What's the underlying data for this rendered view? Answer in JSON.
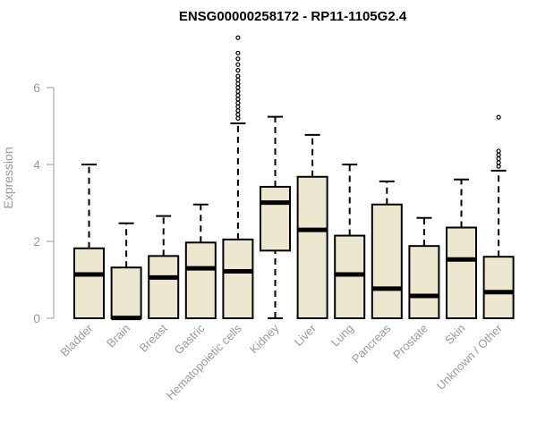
{
  "chart_data": {
    "type": "boxplot",
    "title": "ENSG00000258172 - RP11-1105G2.4",
    "ylabel": "Expression",
    "xlabel": "",
    "ylim": [
      0,
      7.4
    ],
    "yticks": [
      0,
      2,
      4,
      6
    ],
    "grid": false,
    "colors": {
      "box_fill": "#ede7cf",
      "stroke": "#000000",
      "axis_text": "#999999"
    },
    "categories": [
      "Bladder",
      "Brain",
      "Breast",
      "Gastric",
      "Hematopoietic cells",
      "Kidney",
      "Liver",
      "Lung",
      "Pancreas",
      "Prostate",
      "Skin",
      "Unknown / Other"
    ],
    "boxes": [
      {
        "min": 0,
        "q1": 0,
        "median": 1.14,
        "q3": 1.82,
        "max": 4.0,
        "outliers": []
      },
      {
        "min": 0,
        "q1": 0,
        "median": 0.01,
        "q3": 1.32,
        "max": 2.47,
        "outliers": []
      },
      {
        "min": 0,
        "q1": 0,
        "median": 1.06,
        "q3": 1.62,
        "max": 2.66,
        "outliers": []
      },
      {
        "min": 0,
        "q1": 0,
        "median": 1.3,
        "q3": 1.97,
        "max": 2.96,
        "outliers": []
      },
      {
        "min": 0,
        "q1": 0,
        "median": 1.22,
        "q3": 2.05,
        "max": 5.07,
        "outliers": [
          5.2,
          5.3,
          5.4,
          5.5,
          5.6,
          5.7,
          5.8,
          5.9,
          6.0,
          6.1,
          6.2,
          6.3,
          6.45,
          6.6,
          6.75,
          6.9,
          7.3
        ]
      },
      {
        "min": 0,
        "q1": 1.76,
        "median": 3.01,
        "q3": 3.42,
        "max": 5.24,
        "outliers": []
      },
      {
        "min": 0,
        "q1": 0,
        "median": 2.3,
        "q3": 3.68,
        "max": 4.77,
        "outliers": []
      },
      {
        "min": 0,
        "q1": 0,
        "median": 1.14,
        "q3": 2.15,
        "max": 4.0,
        "outliers": []
      },
      {
        "min": 0,
        "q1": 0,
        "median": 0.77,
        "q3": 2.96,
        "max": 3.56,
        "outliers": []
      },
      {
        "min": 0,
        "q1": 0,
        "median": 0.58,
        "q3": 1.88,
        "max": 2.61,
        "outliers": []
      },
      {
        "min": 0,
        "q1": 0,
        "median": 1.53,
        "q3": 2.36,
        "max": 3.61,
        "outliers": []
      },
      {
        "min": 0,
        "q1": 0,
        "median": 0.68,
        "q3": 1.6,
        "max": 3.84,
        "outliers": [
          3.95,
          4.05,
          4.15,
          4.25,
          4.35,
          5.23
        ]
      }
    ]
  }
}
